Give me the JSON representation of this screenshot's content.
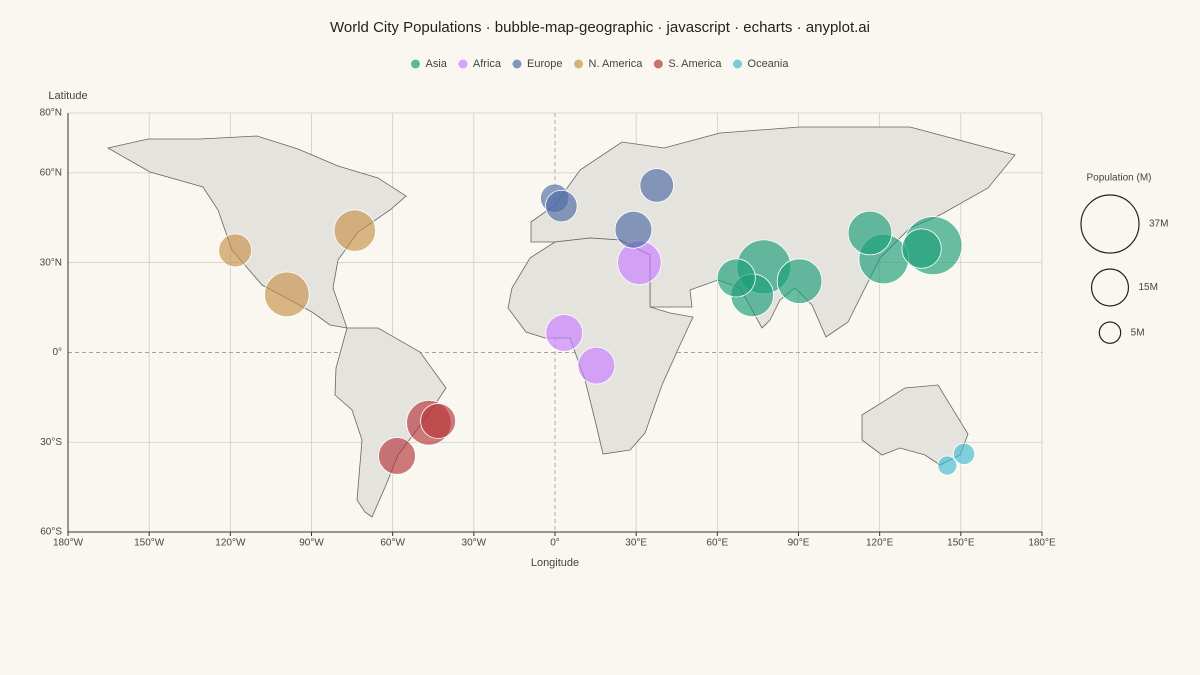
{
  "chart_data": {
    "type": "bubble-map",
    "title": "World City Populations · bubble-map-geographic · javascript · echarts · anyplot.ai",
    "xlabel": "Longitude",
    "ylabel": "Latitude",
    "xlim": [
      -180,
      180
    ],
    "ylim": [
      -60,
      80
    ],
    "xticks": [
      {
        "value": -180,
        "label": "180°W"
      },
      {
        "value": -150,
        "label": "150°W"
      },
      {
        "value": -120,
        "label": "120°W"
      },
      {
        "value": -90,
        "label": "90°W"
      },
      {
        "value": -60,
        "label": "60°W"
      },
      {
        "value": -30,
        "label": "30°W"
      },
      {
        "value": 0,
        "label": "0°"
      },
      {
        "value": 30,
        "label": "30°E"
      },
      {
        "value": 60,
        "label": "60°E"
      },
      {
        "value": 90,
        "label": "90°E"
      },
      {
        "value": 120,
        "label": "120°E"
      },
      {
        "value": 150,
        "label": "150°E"
      },
      {
        "value": 180,
        "label": "180°E"
      }
    ],
    "yticks": [
      {
        "value": 80,
        "label": "80°N"
      },
      {
        "value": 60,
        "label": "60°N"
      },
      {
        "value": 30,
        "label": "30°N"
      },
      {
        "value": 0,
        "label": "0°"
      },
      {
        "value": -30,
        "label": "30°S"
      },
      {
        "value": -60,
        "label": "60°S"
      }
    ],
    "grid": true,
    "series": [
      {
        "name": "Asia",
        "color": "#1a9e77",
        "x": [
          139.7,
          77.2,
          121.5,
          116.4,
          90.4,
          72.9,
          67.0,
          135.5
        ],
        "y": [
          35.7,
          28.6,
          31.2,
          39.9,
          23.8,
          19.1,
          24.9,
          34.7
        ],
        "size": [
          37,
          32,
          27,
          21,
          22,
          20,
          16,
          17
        ]
      },
      {
        "name": "Africa",
        "color": "#c77dff",
        "x": [
          31.2,
          3.4,
          15.3
        ],
        "y": [
          30.0,
          6.5,
          -4.4
        ],
        "size": [
          21,
          15,
          15
        ]
      },
      {
        "name": "Europe",
        "color": "#4e6aa5",
        "x": [
          29.0,
          37.6,
          -0.1,
          2.35
        ],
        "y": [
          41.0,
          55.8,
          51.5,
          48.9
        ],
        "size": [
          15,
          12.5,
          9,
          11
        ]
      },
      {
        "name": "N. America",
        "color": "#c8924a",
        "x": [
          -99.1,
          -74.0,
          -118.2
        ],
        "y": [
          19.4,
          40.7,
          34.1
        ],
        "size": [
          22,
          19,
          12
        ]
      },
      {
        "name": "S. America",
        "color": "#b5363a",
        "x": [
          -46.6,
          -43.2,
          -58.4
        ],
        "y": [
          -23.5,
          -22.9,
          -34.6
        ],
        "size": [
          22,
          13.5,
          15
        ]
      },
      {
        "name": "Oceania",
        "color": "#3fbcd0",
        "x": [
          151.2,
          145.0
        ],
        "y": [
          -33.9,
          -37.8
        ],
        "size": [
          5,
          4
        ]
      }
    ],
    "size_legend": {
      "title": "Population (M)",
      "values": [
        37,
        15,
        5
      ],
      "value_labels": [
        "37M",
        "15M",
        "5M"
      ]
    }
  }
}
